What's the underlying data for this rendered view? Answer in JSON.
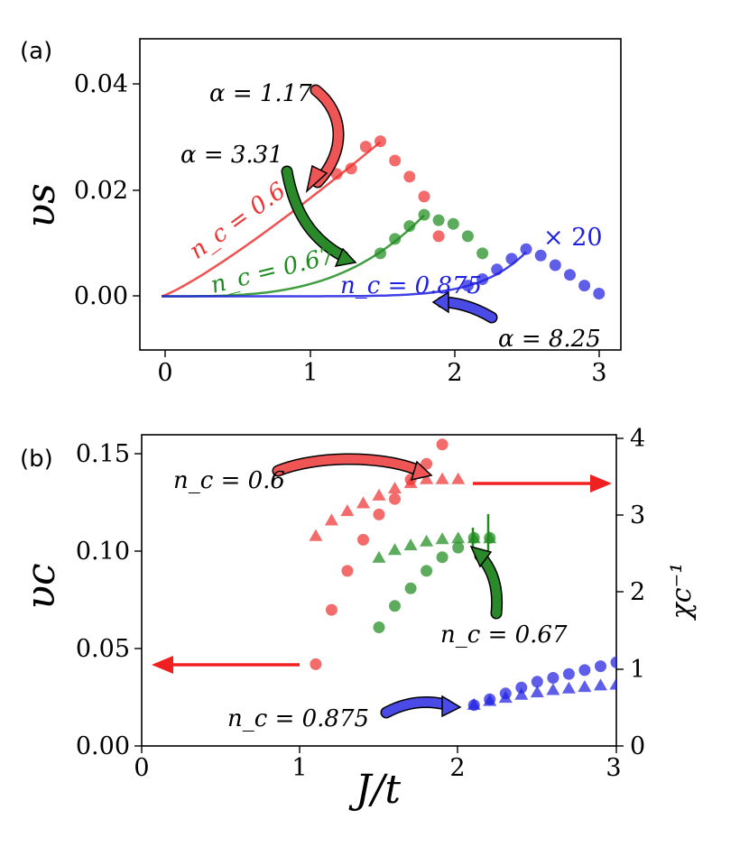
{
  "colors": {
    "red": "#f03232",
    "green": "#1e8c1e",
    "blue": "#2020e0",
    "axis": "#000000"
  },
  "chart_data": [
    {
      "panel": "(a)",
      "type": "scatter",
      "ylabel": "v_s",
      "ylabel_text": "υs",
      "xlabel": "",
      "xlim": [
        -0.15,
        3.15
      ],
      "ylim": [
        -0.01,
        0.048
      ],
      "xticks": [
        "0",
        "1",
        "2",
        "3"
      ],
      "yticks": [
        "0.00",
        "0.02",
        "0.04"
      ],
      "series": [
        {
          "name": "n_c = 0.6",
          "label": "n_c = 0.6",
          "color": "red",
          "x": [
            1.2,
            1.3,
            1.4,
            1.5,
            1.6,
            1.7,
            1.8,
            1.9
          ],
          "y": [
            0.0228,
            0.0238,
            0.0279,
            0.0289,
            0.0253,
            0.0223,
            0.0186,
            0.0112
          ]
        },
        {
          "name": "n_c = 0.67",
          "label": "n_c = 0.67",
          "color": "green",
          "x": [
            1.5,
            1.6,
            1.7,
            1.8,
            1.9,
            2.0,
            2.1,
            2.2
          ],
          "y": [
            0.008,
            0.0107,
            0.0131,
            0.0152,
            0.0142,
            0.0135,
            0.0112,
            0.008
          ]
        },
        {
          "name": "n_c = 0.875",
          "label": "n_c = 0.875",
          "color": "blue",
          "x": [
            2.1,
            2.2,
            2.3,
            2.4,
            2.5,
            2.6,
            2.7,
            2.8,
            2.9,
            3.0
          ],
          "y": [
            0.002,
            0.0032,
            0.005,
            0.007,
            0.0088,
            0.0076,
            0.0058,
            0.004,
            0.002,
            0.0005
          ]
        }
      ],
      "fits": [
        {
          "color": "red",
          "alpha": 1.17,
          "label": "α = 1.17",
          "coef": 0.0179,
          "xmax": 1.5
        },
        {
          "color": "green",
          "alpha": 3.31,
          "label": "α = 3.31",
          "coef": 0.00216,
          "xmax": 1.8
        },
        {
          "color": "blue",
          "alpha": 8.25,
          "label": "α = 8.25",
          "coef": 4.3e-06,
          "xmax": 2.5
        }
      ],
      "annotations": {
        "scale": "× 20"
      }
    },
    {
      "panel": "(b)",
      "type": "scatter",
      "ylabel": "v_c",
      "ylabel_text": "υc",
      "xlabel": "J/t",
      "ylabel_right": "χ_c^-1",
      "ylabel_right_text": "χc⁻¹",
      "xlim": [
        0,
        3
      ],
      "ylim": [
        0,
        0.16
      ],
      "ylim_right": [
        0,
        4
      ],
      "xticks": [
        "0",
        "1",
        "2",
        "3"
      ],
      "yticks": [
        "0.00",
        "0.05",
        "0.10",
        "0.15"
      ],
      "yticks_right": [
        "0",
        "1",
        "2",
        "3",
        "4"
      ],
      "series": [
        {
          "name": "v_c n_c = 0.6",
          "axis": "left",
          "marker": "circle",
          "color": "red",
          "x": [
            1.1,
            1.2,
            1.3,
            1.4,
            1.5,
            1.6,
            1.7,
            1.8,
            1.9
          ],
          "y": [
            0.042,
            0.07,
            0.09,
            0.106,
            0.119,
            0.127,
            0.137,
            0.145,
            0.155
          ]
        },
        {
          "name": "v_c n_c = 0.67",
          "axis": "left",
          "marker": "circle",
          "color": "green",
          "x": [
            1.5,
            1.6,
            1.7,
            1.8,
            1.9,
            2.0,
            2.1,
            2.2
          ],
          "y": [
            0.061,
            0.072,
            0.081,
            0.09,
            0.097,
            0.102,
            0.107,
            0.107
          ]
        },
        {
          "name": "v_c n_c = 0.875",
          "axis": "left",
          "marker": "circle",
          "color": "blue",
          "x": [
            2.1,
            2.2,
            2.3,
            2.4,
            2.5,
            2.6,
            2.7,
            2.8,
            2.9,
            3.0
          ],
          "y": [
            0.021,
            0.024,
            0.027,
            0.03,
            0.033,
            0.035,
            0.037,
            0.039,
            0.041,
            0.043
          ]
        },
        {
          "name": "χ_c^-1 n_c = 0.6",
          "axis": "right",
          "marker": "triangle",
          "color": "red",
          "x": [
            1.1,
            1.2,
            1.3,
            1.4,
            1.5,
            1.6,
            1.7,
            1.8,
            1.9,
            2.0
          ],
          "y": [
            2.7,
            2.9,
            3.02,
            3.12,
            3.22,
            3.31,
            3.38,
            3.43,
            3.43,
            3.43
          ]
        },
        {
          "name": "χ_c^-1 n_c = 0.67",
          "axis": "right",
          "marker": "triangle",
          "color": "green",
          "x": [
            1.5,
            1.6,
            1.7,
            1.8,
            1.9,
            2.0,
            2.1,
            2.2
          ],
          "y": [
            2.42,
            2.52,
            2.58,
            2.63,
            2.66,
            2.67,
            2.67,
            2.67
          ]
        },
        {
          "name": "χ_c^-1 n_c = 0.875",
          "axis": "right",
          "marker": "triangle",
          "color": "blue",
          "x": [
            2.1,
            2.2,
            2.3,
            2.4,
            2.5,
            2.6,
            2.7,
            2.8,
            2.9,
            3.0
          ],
          "y": [
            0.53,
            0.58,
            0.62,
            0.66,
            0.69,
            0.72,
            0.74,
            0.76,
            0.78,
            0.79
          ]
        }
      ],
      "annotations": [
        {
          "label": "n_c = 0.6"
        },
        {
          "label": "n_c = 0.67"
        },
        {
          "label": "n_c = 0.875"
        }
      ]
    }
  ]
}
